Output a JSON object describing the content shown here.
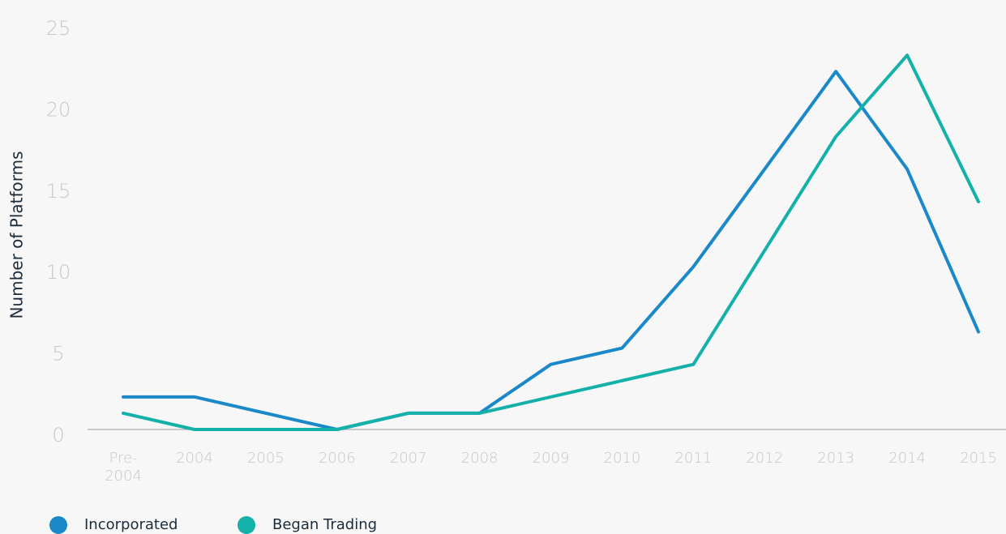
{
  "chart_data": {
    "type": "line",
    "y_axis_label": "Number of Platforms",
    "categories": [
      "Pre-2004",
      "2004",
      "2005",
      "2006",
      "2007",
      "2008",
      "2009",
      "2010",
      "2011",
      "2012",
      "2013",
      "2014",
      "2015"
    ],
    "series": [
      {
        "name": "Incorporated",
        "color": "#1a88c9",
        "values": [
          2,
          2,
          1,
          0,
          1,
          1,
          4,
          5,
          10,
          16,
          22,
          16,
          6
        ]
      },
      {
        "name": "Began Trading",
        "color": "#14b0aa",
        "values": [
          1,
          0,
          0,
          0,
          1,
          1,
          2,
          3,
          4,
          11,
          18,
          23,
          14
        ]
      }
    ],
    "ylim": [
      0,
      25
    ],
    "yticks": [
      0,
      5,
      10,
      15,
      20,
      25
    ],
    "grid": false,
    "legend": "bottom-left"
  }
}
